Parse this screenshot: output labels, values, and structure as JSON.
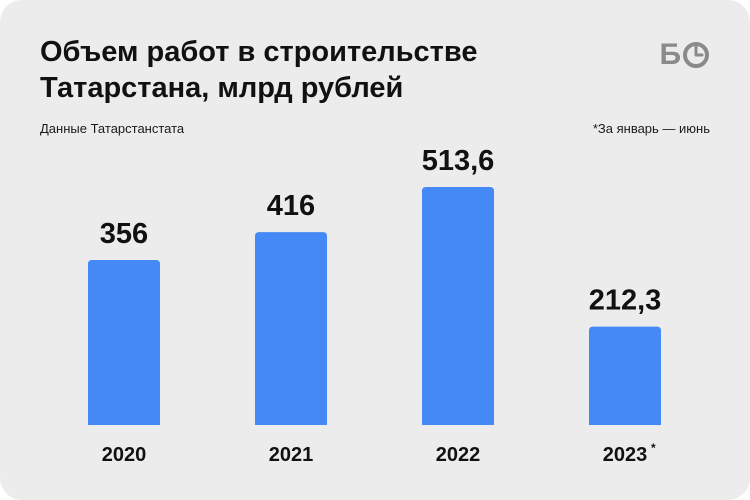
{
  "header": {
    "title_line1": "Объем работ в строительстве",
    "title_line2": "Татарстана, млрд рублей",
    "source": "Данные Татарстанстата",
    "footnote": "*За январь — июнь"
  },
  "logo": {
    "text": "Б",
    "icon": "clock-o-icon",
    "color": "#8a8a8a"
  },
  "chart_data": {
    "type": "bar",
    "categories": [
      "2020",
      "2021",
      "2022",
      "2023"
    ],
    "category_marks": [
      "",
      "",
      "",
      "*"
    ],
    "values": [
      356,
      416,
      513.6,
      212.3
    ],
    "value_labels": [
      "356",
      "416",
      "513,6",
      "212,3"
    ],
    "title": "Объем работ в строительстве Татарстана, млрд рублей",
    "xlabel": "",
    "ylabel": "",
    "grid": false,
    "legend": "none",
    "colors": {
      "bar": "#4489f5",
      "background": "#ececec",
      "text": "#111111"
    }
  }
}
